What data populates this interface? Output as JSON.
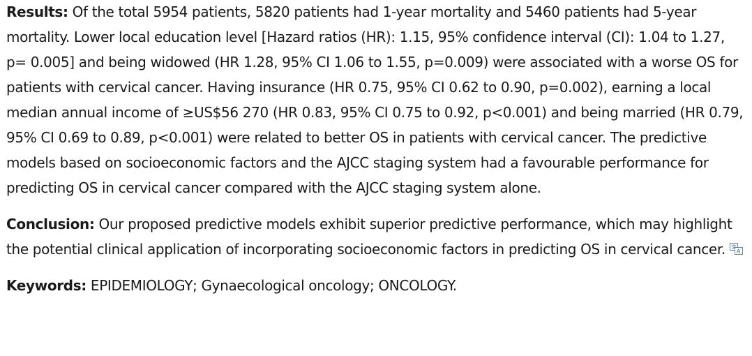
{
  "results": {
    "label": "Results:",
    "text": " Of the total 5954 patients, 5820 patients had 1-year mortality and 5460 patients had 5-year mortality. Lower local education level [Hazard ratios (HR): 1.15, 95% confidence interval (CI): 1.04 to 1.27, p= 0.005] and being widowed (HR 1.28, 95% CI 1.06 to 1.55, p=0.009) were associated with a worse OS for patients with cervical cancer. Having insurance (HR 0.75, 95% CI 0.62 to 0.90, p=0.002), earning a local median annual income of ≥US$56 270 (HR 0.83, 95% CI 0.75 to 0.92, p<0.001) and being married (HR 0.79, 95% CI 0.69 to 0.89, p<0.001) were related to better OS in patients with cervical cancer. The predictive models based on socioeconomic factors and the AJCC staging system had a favourable performance for predicting OS in cervical cancer compared with the AJCC staging system alone."
  },
  "conclusion": {
    "label": "Conclusion:",
    "text": " Our proposed predictive models exhibit superior predictive performance, which may highlight the potential clinical application of incorporating socioeconomic factors in predicting OS in cervical cancer."
  },
  "keywords": {
    "label": "Keywords:",
    "text": " EPIDEMIOLOGY; Gynaecological oncology; ONCOLOGY."
  },
  "icons": {
    "translate": "translate-icon"
  }
}
